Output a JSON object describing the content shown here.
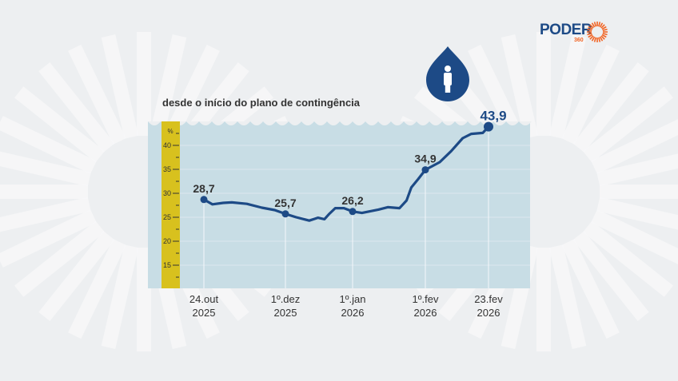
{
  "brand": {
    "name": "PODER",
    "sub": "360",
    "color": "#1d4a86",
    "accent": "#f26322"
  },
  "subtitle": "desde o início do plano de contingência",
  "icon": "water-drop-person-icon",
  "chart_data": {
    "type": "line",
    "title": "",
    "subtitle": "desde o início do plano de contingência",
    "ylabel": "%",
    "ylim": [
      10,
      45
    ],
    "yticks": [
      15,
      20,
      25,
      30,
      35,
      40
    ],
    "grid": true,
    "xticks": [
      {
        "date": "2025-10-24",
        "line1": "24.out",
        "line2": "2025"
      },
      {
        "date": "2025-12-01",
        "line1": "1º.dez",
        "line2": "2025"
      },
      {
        "date": "2026-01-01",
        "line1": "1º.jan",
        "line2": "2026"
      },
      {
        "date": "2026-02-01",
        "line1": "1º.fev",
        "line2": "2026"
      },
      {
        "date": "2026-02-23",
        "line1": "23.fev",
        "line2": "2026"
      }
    ],
    "annotations": [
      {
        "date": "2025-10-24",
        "value": 28.7,
        "label": "28,7"
      },
      {
        "date": "2025-12-01",
        "value": 25.7,
        "label": "25,7"
      },
      {
        "date": "2026-01-01",
        "value": 26.2,
        "label": "26,2"
      },
      {
        "date": "2026-02-01",
        "value": 34.9,
        "label": "34,9"
      },
      {
        "date": "2026-02-23",
        "value": 43.9,
        "label": "43,9"
      }
    ],
    "series": [
      {
        "color": "#1d4a86",
        "points": [
          [
            "2025-10-24",
            28.7
          ],
          [
            "2025-10-28",
            27.7
          ],
          [
            "2025-11-02",
            28.0
          ],
          [
            "2025-11-06",
            28.1
          ],
          [
            "2025-11-13",
            27.8
          ],
          [
            "2025-11-20",
            27.0
          ],
          [
            "2025-11-26",
            26.5
          ],
          [
            "2025-12-01",
            25.7
          ],
          [
            "2025-12-06",
            25.0
          ],
          [
            "2025-12-12",
            24.3
          ],
          [
            "2025-12-16",
            24.9
          ],
          [
            "2025-12-19",
            24.6
          ],
          [
            "2025-12-21",
            25.6
          ],
          [
            "2025-12-24",
            26.9
          ],
          [
            "2025-12-28",
            26.9
          ],
          [
            "2026-01-01",
            26.2
          ],
          [
            "2026-01-05",
            25.9
          ],
          [
            "2026-01-12",
            26.6
          ],
          [
            "2026-01-16",
            27.1
          ],
          [
            "2026-01-21",
            26.9
          ],
          [
            "2026-01-24",
            28.5
          ],
          [
            "2026-01-26",
            31.2
          ],
          [
            "2026-01-29",
            33.0
          ],
          [
            "2026-02-01",
            34.9
          ],
          [
            "2026-02-06",
            36.5
          ],
          [
            "2026-02-10",
            38.8
          ],
          [
            "2026-02-14",
            41.5
          ],
          [
            "2026-02-17",
            42.4
          ],
          [
            "2026-02-21",
            42.6
          ],
          [
            "2026-02-23",
            43.9
          ]
        ]
      }
    ]
  }
}
